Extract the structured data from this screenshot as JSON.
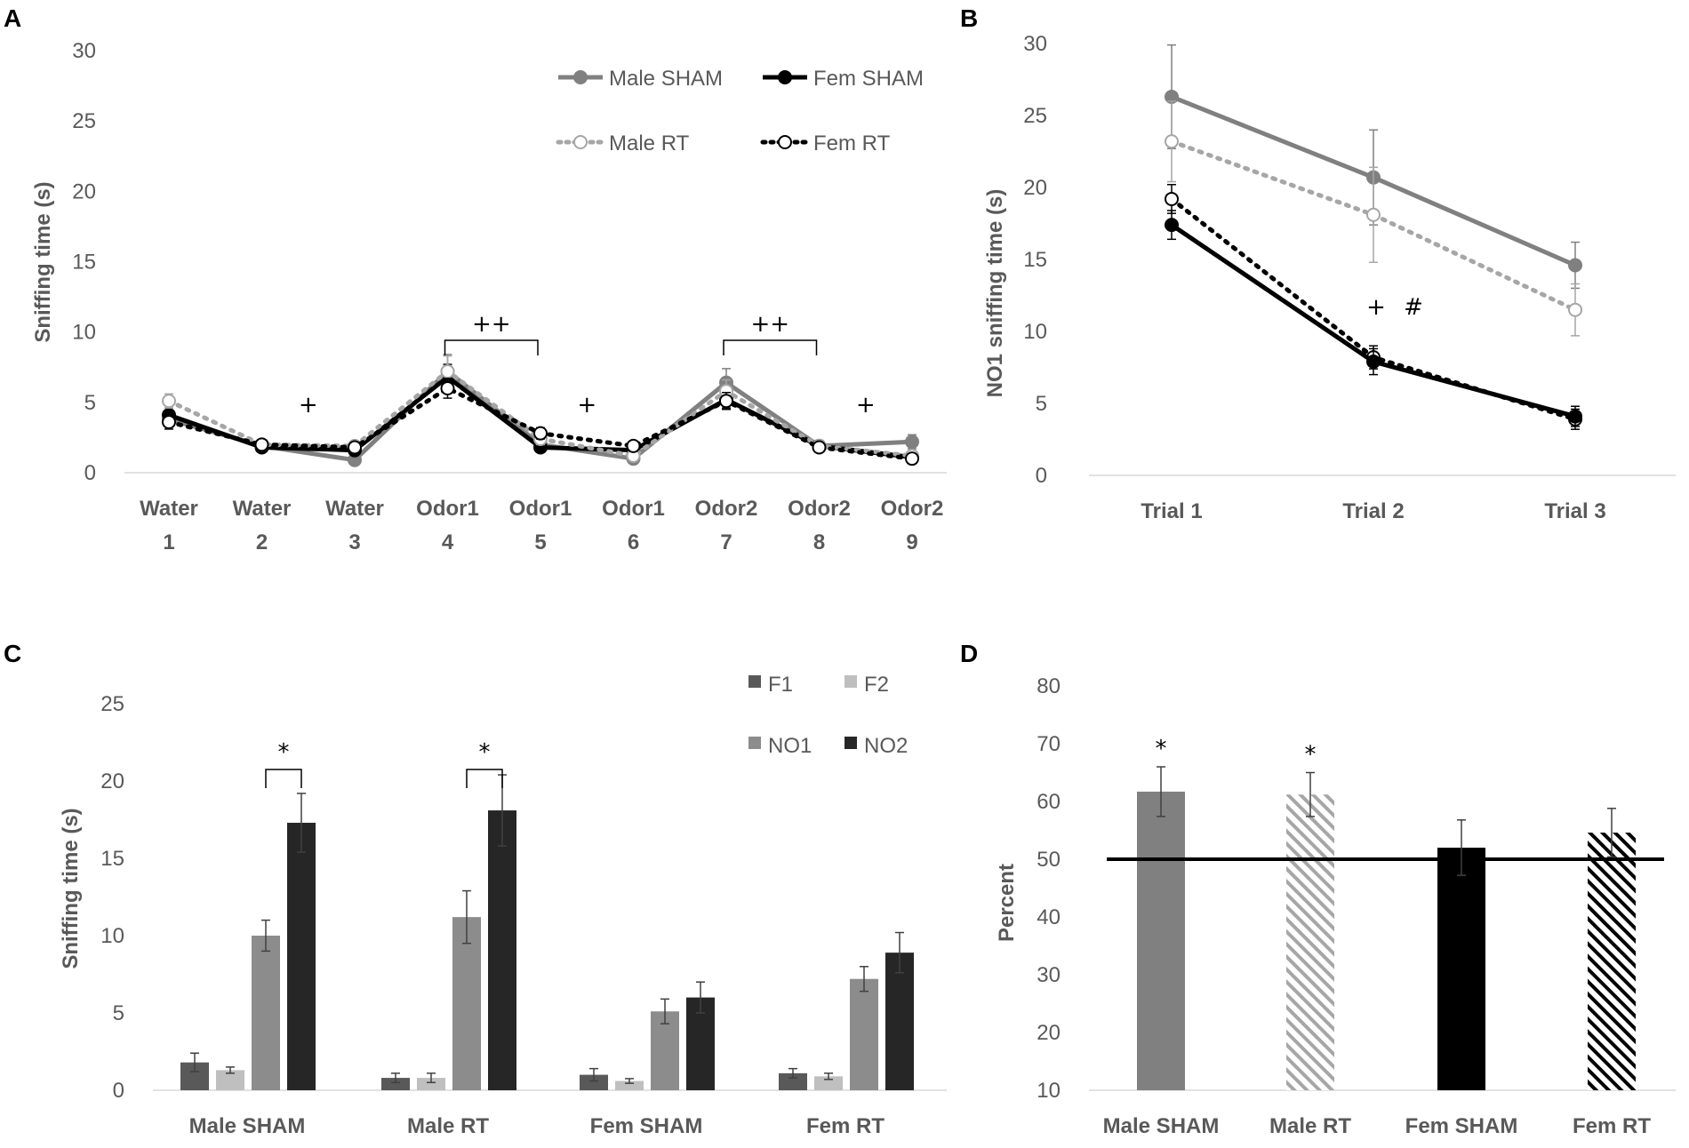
{
  "chart_data": [
    {
      "panel": "A",
      "type": "line",
      "ylabel": "Sniffing time (s)",
      "ylim": [
        0,
        30
      ],
      "yticks": [
        "0",
        "5",
        "10",
        "15",
        "20",
        "25",
        "30"
      ],
      "categories": [
        {
          "top": "Water",
          "bottom": "1"
        },
        {
          "top": "Water",
          "bottom": "2"
        },
        {
          "top": "Water",
          "bottom": "3"
        },
        {
          "top": "Odor1",
          "bottom": "4"
        },
        {
          "top": "Odor1",
          "bottom": "5"
        },
        {
          "top": "Odor1",
          "bottom": "6"
        },
        {
          "top": "Odor2",
          "bottom": "7"
        },
        {
          "top": "Odor2",
          "bottom": "8"
        },
        {
          "top": "Odor2",
          "bottom": "9"
        }
      ],
      "series": [
        {
          "name": "Male SHAM",
          "color": "#808080",
          "style": "solid",
          "marker": "filled",
          "values": [
            3.8,
            1.9,
            0.9,
            7.2,
            2.0,
            1.0,
            6.4,
            1.9,
            2.2
          ],
          "errors": [
            0.5,
            0.3,
            0.3,
            1.2,
            0.4,
            0.3,
            1.0,
            0.4,
            0.5
          ]
        },
        {
          "name": "Fem SHAM",
          "color": "#000000",
          "style": "solid",
          "marker": "filled",
          "values": [
            4.1,
            1.8,
            1.6,
            6.8,
            1.8,
            1.6,
            5.2,
            1.9,
            1.1
          ],
          "errors": [
            0.5,
            0.3,
            0.3,
            0.9,
            0.3,
            0.3,
            0.6,
            0.3,
            0.3
          ]
        },
        {
          "name": "Male RT",
          "color": "#A6A6A6",
          "style": "dotted",
          "marker": "open",
          "values": [
            5.1,
            2.0,
            1.9,
            7.2,
            2.4,
            1.2,
            5.8,
            1.9,
            1.2
          ],
          "errors": [
            0.5,
            0.3,
            0.3,
            1.1,
            0.4,
            0.3,
            0.8,
            0.3,
            0.3
          ]
        },
        {
          "name": "Fem RT",
          "color": "#000000",
          "style": "dotted",
          "marker": "open",
          "values": [
            3.6,
            2.0,
            1.8,
            6.0,
            2.8,
            1.9,
            5.1,
            1.8,
            1.0
          ],
          "errors": [
            0.5,
            0.3,
            0.3,
            0.7,
            0.4,
            0.3,
            0.6,
            0.3,
            0.3
          ]
        }
      ],
      "annotations": [
        {
          "text": "+",
          "between": [
            1,
            2
          ]
        },
        {
          "text": "++",
          "between": [
            3,
            4
          ]
        },
        {
          "text": "+",
          "between": [
            4,
            5
          ]
        },
        {
          "text": "++",
          "between": [
            6,
            7
          ]
        },
        {
          "text": "+",
          "between": [
            7,
            8
          ]
        }
      ]
    },
    {
      "panel": "B",
      "type": "line",
      "ylabel": "NO1 sniffing time (s)",
      "ylim": [
        0,
        30
      ],
      "yticks": [
        "0",
        "5",
        "10",
        "15",
        "20",
        "25",
        "30"
      ],
      "categories": [
        "Trial 1",
        "Trial 2",
        "Trial 3"
      ],
      "series": [
        {
          "name": "Male SHAM",
          "color": "#808080",
          "style": "solid",
          "marker": "filled",
          "values": [
            26.3,
            20.7,
            14.6
          ],
          "errors": [
            3.6,
            3.3,
            1.6
          ]
        },
        {
          "name": "Male RT",
          "color": "#A6A6A6",
          "style": "dotted",
          "marker": "open",
          "values": [
            23.2,
            18.1,
            11.5
          ],
          "errors": [
            2.8,
            3.3,
            1.8
          ]
        },
        {
          "name": "Fem RT",
          "color": "#000000",
          "style": "dotted",
          "marker": "open",
          "values": [
            19.2,
            8.2,
            3.9
          ],
          "errors": [
            1.0,
            0.8,
            0.7
          ]
        },
        {
          "name": "Fem SHAM",
          "color": "#000000",
          "style": "solid",
          "marker": "filled",
          "values": [
            17.4,
            7.9,
            4.1
          ],
          "errors": [
            1.0,
            0.9,
            0.7
          ]
        }
      ],
      "annotations": [
        "+",
        "#"
      ]
    },
    {
      "panel": "C",
      "type": "bar",
      "ylabel": "Sniffing time (s)",
      "ylim": [
        0,
        25
      ],
      "yticks": [
        "0",
        "5",
        "10",
        "15",
        "20",
        "25"
      ],
      "categories": [
        "Male SHAM",
        "Male RT",
        "Fem SHAM",
        "Fem RT"
      ],
      "series": [
        {
          "name": "F1",
          "color": "#595959",
          "values": [
            1.8,
            0.8,
            1.0,
            1.1
          ],
          "errors": [
            0.6,
            0.3,
            0.4,
            0.3
          ]
        },
        {
          "name": "F2",
          "color": "#BFBFBF",
          "values": [
            1.3,
            0.8,
            0.6,
            0.9
          ],
          "errors": [
            0.2,
            0.3,
            0.15,
            0.2
          ]
        },
        {
          "name": "NO1",
          "color": "#8C8C8C",
          "values": [
            10.0,
            11.2,
            5.1,
            7.2
          ],
          "errors": [
            1.0,
            1.7,
            0.8,
            0.8
          ]
        },
        {
          "name": "NO2",
          "color": "#262626",
          "values": [
            17.3,
            18.1,
            6.0,
            8.9
          ],
          "errors": [
            1.9,
            2.3,
            1.0,
            1.3
          ]
        }
      ],
      "annotations": [
        {
          "text": "*",
          "category": "Male SHAM"
        },
        {
          "text": "*",
          "category": "Male RT"
        }
      ]
    },
    {
      "panel": "D",
      "type": "bar",
      "ylabel": "Percent",
      "ylim": [
        10,
        80
      ],
      "yticks": [
        "10",
        "20",
        "30",
        "40",
        "50",
        "60",
        "70",
        "80"
      ],
      "categories": [
        "Male SHAM",
        "Male RT",
        "Fem SHAM",
        "Fem RT"
      ],
      "values": [
        61.7,
        61.2,
        52.0,
        54.6
      ],
      "errors": [
        4.3,
        3.8,
        4.8,
        4.2
      ],
      "fills": [
        {
          "color": "#808080",
          "pattern": "solid"
        },
        {
          "color": "#A6A6A6",
          "pattern": "hatch"
        },
        {
          "color": "#000000",
          "pattern": "solid"
        },
        {
          "color": "#000000",
          "pattern": "hatch"
        }
      ],
      "reference_line": 50,
      "annotations": [
        {
          "text": "*",
          "category": "Male SHAM"
        },
        {
          "text": "*",
          "category": "Male RT"
        }
      ]
    }
  ]
}
